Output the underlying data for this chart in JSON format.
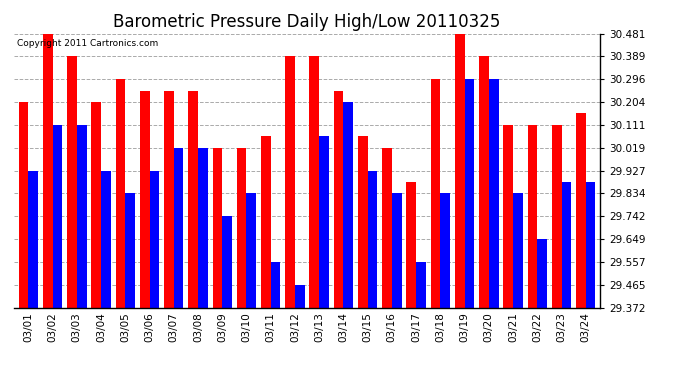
{
  "title": "Barometric Pressure Daily High/Low 20110325",
  "copyright": "Copyright 2011 Cartronics.com",
  "dates": [
    "03/01",
    "03/02",
    "03/03",
    "03/04",
    "03/05",
    "03/06",
    "03/07",
    "03/08",
    "03/09",
    "03/10",
    "03/11",
    "03/12",
    "03/13",
    "03/14",
    "03/15",
    "03/16",
    "03/17",
    "03/18",
    "03/19",
    "03/20",
    "03/21",
    "03/22",
    "03/23",
    "03/24"
  ],
  "highs": [
    30.204,
    30.481,
    30.389,
    30.204,
    30.296,
    30.25,
    30.25,
    30.25,
    30.019,
    30.019,
    30.065,
    30.389,
    30.389,
    30.25,
    30.065,
    30.019,
    29.88,
    30.296,
    30.481,
    30.389,
    30.111,
    30.111,
    30.111,
    30.16
  ],
  "lows": [
    29.927,
    30.111,
    30.111,
    29.927,
    29.834,
    29.927,
    30.019,
    30.019,
    29.742,
    29.834,
    29.557,
    29.465,
    30.065,
    30.204,
    29.927,
    29.834,
    29.557,
    29.834,
    30.296,
    30.296,
    29.834,
    29.649,
    29.88,
    29.88
  ],
  "high_color": "#ff0000",
  "low_color": "#0000ff",
  "background_color": "#ffffff",
  "grid_color": "#aaaaaa",
  "ymin": 29.372,
  "ymax": 30.481,
  "yticks": [
    30.481,
    30.389,
    30.296,
    30.204,
    30.111,
    30.019,
    29.927,
    29.834,
    29.742,
    29.649,
    29.557,
    29.465,
    29.372
  ],
  "title_fontsize": 12,
  "tick_fontsize": 7.5,
  "bar_width": 0.4,
  "border_color": "#000000"
}
